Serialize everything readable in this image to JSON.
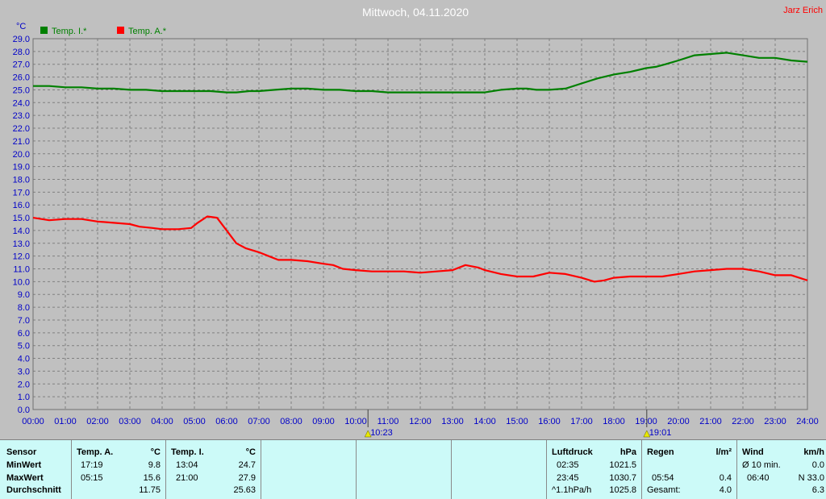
{
  "chart_data": {
    "type": "line",
    "title": "Mittwoch, 04.11.2020",
    "author": "Jarz Erich",
    "ylabel": "°C",
    "ylim": [
      0,
      29
    ],
    "y_ticks": [
      "0.0",
      "1.0",
      "2.0",
      "3.0",
      "4.0",
      "5.0",
      "6.0",
      "7.0",
      "8.0",
      "9.0",
      "10.0",
      "11.0",
      "12.0",
      "13.0",
      "14.0",
      "15.0",
      "16.0",
      "17.0",
      "18.0",
      "19.0",
      "20.0",
      "21.0",
      "22.0",
      "23.0",
      "24.0",
      "25.0",
      "26.0",
      "27.0",
      "28.0",
      "29.0"
    ],
    "xlim": [
      0,
      24
    ],
    "x_ticks": [
      "00:00",
      "01:00",
      "02:00",
      "03:00",
      "04:00",
      "05:00",
      "06:00",
      "07:00",
      "08:00",
      "09:00",
      "10:00",
      "11:00",
      "12:00",
      "13:00",
      "14:00",
      "15:00",
      "16:00",
      "17:00",
      "18:00",
      "19:00",
      "20:00",
      "21:00",
      "22:00",
      "23:00",
      "24:00"
    ],
    "grid": true,
    "legend_position": "top-left",
    "sun_markers": [
      {
        "label": "10:23",
        "x": 10.38
      },
      {
        "label": "19:01",
        "x": 19.02
      }
    ],
    "series": [
      {
        "name": "Temp. I.*",
        "color": "#008000",
        "points": [
          [
            0,
            25.3
          ],
          [
            0.5,
            25.3
          ],
          [
            1,
            25.2
          ],
          [
            1.5,
            25.2
          ],
          [
            2,
            25.1
          ],
          [
            2.5,
            25.1
          ],
          [
            3,
            25.0
          ],
          [
            3.5,
            25.0
          ],
          [
            4,
            24.9
          ],
          [
            4.5,
            24.9
          ],
          [
            5,
            24.9
          ],
          [
            5.5,
            24.9
          ],
          [
            6,
            24.8
          ],
          [
            6.3,
            24.8
          ],
          [
            6.7,
            24.9
          ],
          [
            7,
            24.9
          ],
          [
            7.5,
            25.0
          ],
          [
            8,
            25.1
          ],
          [
            8.5,
            25.1
          ],
          [
            9,
            25.0
          ],
          [
            9.5,
            25.0
          ],
          [
            10,
            24.9
          ],
          [
            10.5,
            24.9
          ],
          [
            11,
            24.8
          ],
          [
            11.5,
            24.8
          ],
          [
            12,
            24.8
          ],
          [
            12.5,
            24.8
          ],
          [
            13,
            24.8
          ],
          [
            13.5,
            24.8
          ],
          [
            14,
            24.8
          ],
          [
            14.5,
            25.0
          ],
          [
            15,
            25.1
          ],
          [
            15.3,
            25.1
          ],
          [
            15.6,
            25.0
          ],
          [
            16,
            25.0
          ],
          [
            16.5,
            25.1
          ],
          [
            17,
            25.5
          ],
          [
            17.5,
            25.9
          ],
          [
            18,
            26.2
          ],
          [
            18.5,
            26.4
          ],
          [
            19,
            26.7
          ],
          [
            19.3,
            26.8
          ],
          [
            19.6,
            27.0
          ],
          [
            20,
            27.3
          ],
          [
            20.5,
            27.7
          ],
          [
            21,
            27.8
          ],
          [
            21.5,
            27.9
          ],
          [
            22,
            27.7
          ],
          [
            22.5,
            27.5
          ],
          [
            23,
            27.5
          ],
          [
            23.5,
            27.3
          ],
          [
            24,
            27.2
          ]
        ]
      },
      {
        "name": "Temp. A.*",
        "color": "#ff0000",
        "points": [
          [
            0,
            15.0
          ],
          [
            0.5,
            14.8
          ],
          [
            1,
            14.9
          ],
          [
            1.5,
            14.9
          ],
          [
            2,
            14.7
          ],
          [
            2.5,
            14.6
          ],
          [
            3,
            14.5
          ],
          [
            3.3,
            14.3
          ],
          [
            3.7,
            14.2
          ],
          [
            4,
            14.1
          ],
          [
            4.5,
            14.1
          ],
          [
            4.9,
            14.2
          ],
          [
            5.1,
            14.6
          ],
          [
            5.4,
            15.1
          ],
          [
            5.7,
            15.0
          ],
          [
            6,
            14.0
          ],
          [
            6.3,
            13.0
          ],
          [
            6.6,
            12.6
          ],
          [
            7,
            12.3
          ],
          [
            7.3,
            12.0
          ],
          [
            7.6,
            11.7
          ],
          [
            8,
            11.7
          ],
          [
            8.5,
            11.6
          ],
          [
            9,
            11.4
          ],
          [
            9.3,
            11.3
          ],
          [
            9.6,
            11.0
          ],
          [
            10,
            10.9
          ],
          [
            10.5,
            10.8
          ],
          [
            11,
            10.8
          ],
          [
            11.5,
            10.8
          ],
          [
            12,
            10.7
          ],
          [
            12.5,
            10.8
          ],
          [
            13,
            10.9
          ],
          [
            13.4,
            11.3
          ],
          [
            13.8,
            11.1
          ],
          [
            14,
            10.9
          ],
          [
            14.5,
            10.6
          ],
          [
            15,
            10.4
          ],
          [
            15.5,
            10.4
          ],
          [
            16,
            10.7
          ],
          [
            16.5,
            10.6
          ],
          [
            17,
            10.3
          ],
          [
            17.4,
            10.0
          ],
          [
            17.7,
            10.1
          ],
          [
            18,
            10.3
          ],
          [
            18.5,
            10.4
          ],
          [
            19,
            10.4
          ],
          [
            19.5,
            10.4
          ],
          [
            20,
            10.6
          ],
          [
            20.5,
            10.8
          ],
          [
            21,
            10.9
          ],
          [
            21.5,
            11.0
          ],
          [
            22,
            11.0
          ],
          [
            22.5,
            10.8
          ],
          [
            23,
            10.5
          ],
          [
            23.5,
            10.5
          ],
          [
            24,
            10.1
          ]
        ]
      }
    ]
  },
  "summary": {
    "sensor": {
      "header": "Sensor",
      "rows": [
        "MinWert",
        "MaxWert",
        "Durchschnitt"
      ]
    },
    "temp_a": {
      "header": "Temp. A.",
      "unit": "°C",
      "min_time": "17:19",
      "min": "9.8",
      "max_time": "05:15",
      "max": "15.6",
      "avg": "11.75"
    },
    "temp_i": {
      "header": "Temp. I.",
      "unit": "°C",
      "min_time": "13:04",
      "min": "24.7",
      "max_time": "21:00",
      "max": "27.9",
      "avg": "25.63"
    },
    "luftdruck": {
      "header": "Luftdruck",
      "unit": "hPa",
      "min_time": "02:35",
      "min": "1021.5",
      "max_time": "23:45",
      "max": "1030.7",
      "trend_label": "^1.1hPa/h",
      "current": "1025.8"
    },
    "regen": {
      "header": "Regen",
      "unit": "l/m²",
      "max_time": "05:54",
      "max": "0.4",
      "total_label": "Gesamt:",
      "total": "4.0"
    },
    "wind": {
      "header": "Wind",
      "unit": "km/h",
      "avg_label": "Ø 10 min.",
      "avg": "0.0",
      "max_time": "06:40",
      "max": "N 33.0",
      "current": "6.3"
    }
  }
}
